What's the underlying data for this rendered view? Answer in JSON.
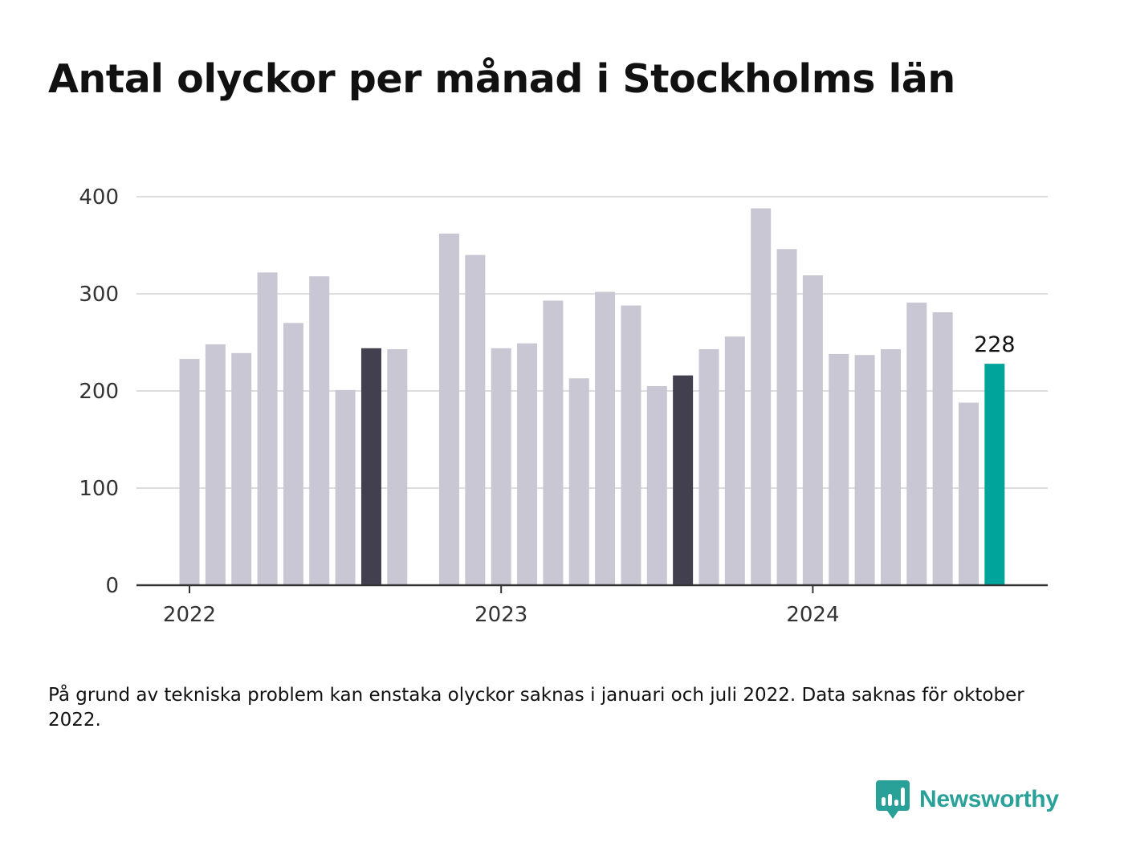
{
  "title": "Antal olyckor per månad i Stockholms län",
  "footnote": "På grund av tekniska problem kan enstaka olyckor saknas i januari och juli 2022. Data saknas för oktober 2022.",
  "brand": {
    "name": "Newsworthy"
  },
  "colors": {
    "default": "#c8c7d3",
    "highlight": "#42404f",
    "latest": "#00a49a",
    "grid": "#dddddd",
    "axis": "#333333"
  },
  "chart_data": {
    "type": "bar",
    "title": "Antal olyckor per månad i Stockholms län",
    "xlabel": "",
    "ylabel": "",
    "ylim": [
      0,
      400
    ],
    "yticks": [
      0,
      100,
      200,
      300,
      400
    ],
    "xtick_labels": [
      "2022",
      "2023",
      "2024"
    ],
    "grid": true,
    "categories": [
      "2022-01",
      "2022-02",
      "2022-03",
      "2022-04",
      "2022-05",
      "2022-06",
      "2022-07",
      "2022-08",
      "2022-09",
      "2022-10",
      "2022-11",
      "2022-12",
      "2023-01",
      "2023-02",
      "2023-03",
      "2023-04",
      "2023-05",
      "2023-06",
      "2023-07",
      "2023-08",
      "2023-09",
      "2023-10",
      "2023-11",
      "2023-12",
      "2024-01",
      "2024-02",
      "2024-03",
      "2024-04",
      "2024-05",
      "2024-06",
      "2024-07",
      "2024-08"
    ],
    "values": [
      233,
      248,
      239,
      322,
      270,
      318,
      201,
      244,
      243,
      null,
      362,
      340,
      244,
      249,
      293,
      213,
      302,
      288,
      205,
      216,
      243,
      256,
      388,
      346,
      319,
      238,
      237,
      243,
      291,
      281,
      188,
      228
    ],
    "highlighted": [
      "2022-08",
      "2023-08"
    ],
    "latest": "2024-08",
    "annotations": [
      {
        "x": "2024-08",
        "text": "228"
      }
    ]
  }
}
